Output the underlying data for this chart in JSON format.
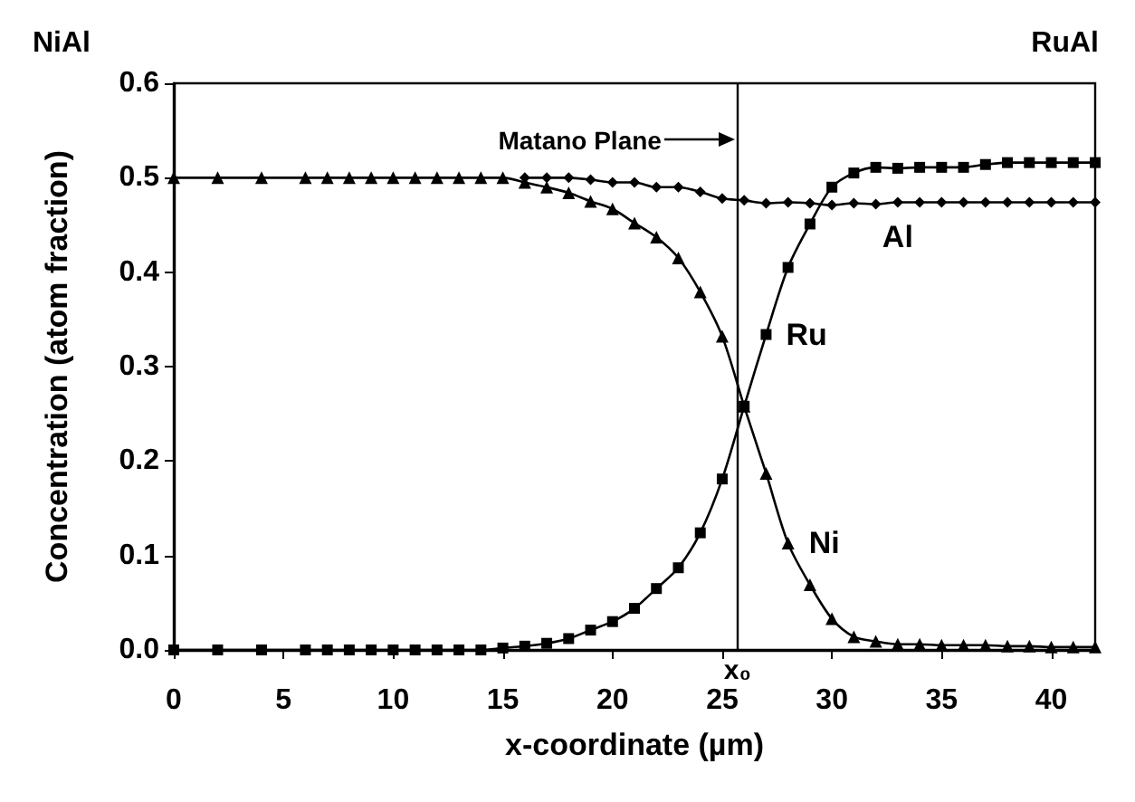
{
  "chart_data": {
    "type": "line",
    "xlabel": "x-coordinate (µm)",
    "ylabel": "Concentration (atom fraction)",
    "annotations": [
      "NiAl",
      "RuAl",
      "Matano Plane"
    ],
    "x": [
      0,
      2,
      4,
      6,
      7,
      8,
      9,
      10,
      11,
      12,
      13,
      14,
      15,
      16,
      17,
      18,
      19,
      20,
      21,
      22,
      23,
      24,
      25,
      26,
      27,
      28,
      29,
      30,
      31,
      32,
      33,
      34,
      35,
      36,
      37,
      38,
      39,
      40,
      41,
      42
    ],
    "series": [
      {
        "name": "Ni",
        "color": "#000000",
        "marker": "triangle",
        "values": [
          0.5,
          0.5,
          0.5,
          0.5,
          0.5,
          0.5,
          0.5,
          0.5,
          0.5,
          0.5,
          0.5,
          0.5,
          0.5,
          0.495,
          0.49,
          0.484,
          0.475,
          0.467,
          0.452,
          0.437,
          0.415,
          0.379,
          0.332,
          0.258,
          0.187,
          0.113,
          0.069,
          0.033,
          0.014,
          0.009,
          0.006,
          0.006,
          0.005,
          0.005,
          0.005,
          0.004,
          0.004,
          0.003,
          0.003,
          0.003
        ]
      },
      {
        "name": "Ru",
        "color": "#000000",
        "marker": "square",
        "values": [
          0,
          0,
          0,
          0,
          0,
          0,
          0,
          0,
          0,
          0,
          0,
          0,
          0.002,
          0.004,
          0.007,
          0.012,
          0.021,
          0.03,
          0.044,
          0.065,
          0.087,
          0.124,
          0.181,
          0.258,
          0.334,
          0.405,
          0.451,
          0.49,
          0.505,
          0.511,
          0.51,
          0.511,
          0.511,
          0.511,
          0.514,
          0.516,
          0.516,
          0.516,
          0.516,
          0.516
        ]
      },
      {
        "name": "Al",
        "color": "#000000",
        "marker": "diamond",
        "values": [
          null,
          null,
          null,
          null,
          null,
          null,
          null,
          null,
          null,
          null,
          null,
          null,
          null,
          0.5,
          0.5,
          0.5,
          0.498,
          0.495,
          0.495,
          0.49,
          0.49,
          0.485,
          0.478,
          0.476,
          0.473,
          0.474,
          0.473,
          0.471,
          0.473,
          0.472,
          0.474,
          0.474,
          0.474,
          0.474,
          0.474,
          0.474,
          0.474,
          0.474,
          0.474,
          0.474
        ]
      }
    ],
    "xlim": [
      0,
      42
    ],
    "xticks": [
      0,
      5,
      10,
      15,
      20,
      25,
      30,
      35,
      40
    ],
    "ylim": [
      0,
      0.6
    ],
    "yticks": [
      {
        "value": 0,
        "label": "0.0"
      },
      {
        "value": 0.1,
        "label": "0.1"
      },
      {
        "value": 0.2,
        "label": "0.2"
      },
      {
        "value": 0.3,
        "label": "0.3"
      },
      {
        "value": 0.4,
        "label": "0.4"
      },
      {
        "value": 0.5,
        "label": "0.5"
      },
      {
        "value": 0.6,
        "label": "0.6"
      }
    ],
    "ref_lines": [
      {
        "axis": "x",
        "value": 25.7,
        "label": "x₀"
      }
    ],
    "grid": false,
    "legend": false,
    "line_style": "solid"
  }
}
